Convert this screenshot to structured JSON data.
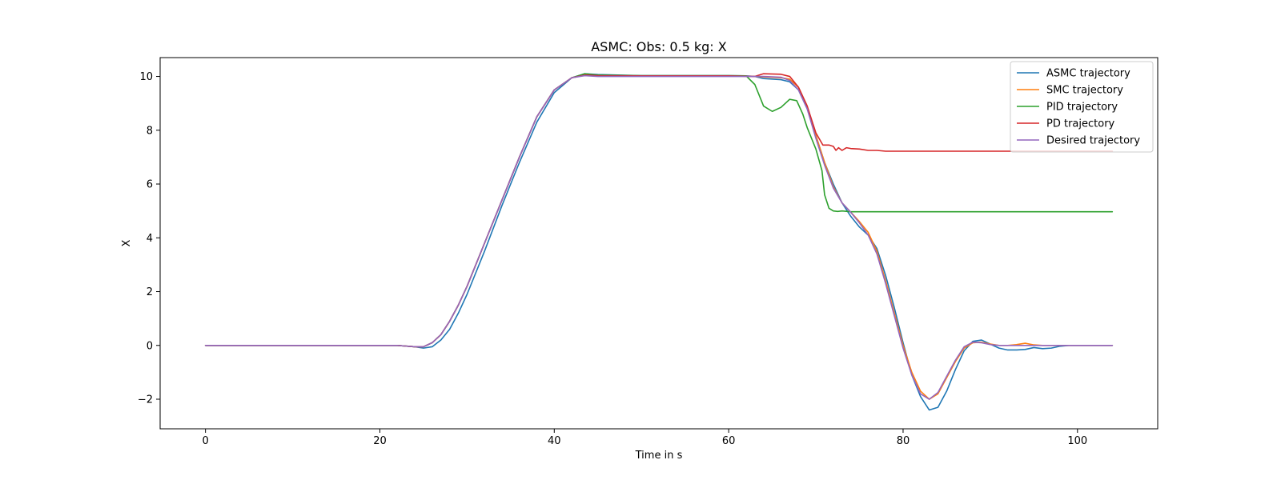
{
  "chart_data": {
    "type": "line",
    "title": "ASMC: Obs: 0.5 kg: X",
    "xlabel": "Time in s",
    "ylabel": "X",
    "xlim": [
      -5.2,
      109.2
    ],
    "ylim": [
      -3.1,
      10.7
    ],
    "xticks": [
      0,
      20,
      40,
      60,
      80,
      100
    ],
    "yticks": [
      -2,
      0,
      2,
      4,
      6,
      8,
      10
    ],
    "xtick_labels": [
      "0",
      "20",
      "40",
      "60",
      "80",
      "100"
    ],
    "ytick_labels": [
      "−2",
      "0",
      "2",
      "4",
      "6",
      "8",
      "10"
    ],
    "grid": false,
    "legend_position": "top-right",
    "series": [
      {
        "name": "ASMC trajectory",
        "color": "#1f77b4",
        "points": [
          [
            0,
            0
          ],
          [
            22,
            0
          ],
          [
            24,
            -0.05
          ],
          [
            25,
            -0.1
          ],
          [
            26,
            -0.05
          ],
          [
            27,
            0.2
          ],
          [
            28,
            0.6
          ],
          [
            29,
            1.2
          ],
          [
            30,
            1.9
          ],
          [
            32,
            3.5
          ],
          [
            34,
            5.2
          ],
          [
            36,
            6.8
          ],
          [
            38,
            8.3
          ],
          [
            40,
            9.4
          ],
          [
            42,
            9.95
          ],
          [
            43.5,
            10.1
          ],
          [
            45,
            10.07
          ],
          [
            50,
            10.03
          ],
          [
            55,
            10.03
          ],
          [
            60,
            10.03
          ],
          [
            62,
            10.02
          ],
          [
            63,
            10.0
          ],
          [
            64,
            9.92
          ],
          [
            66,
            9.88
          ],
          [
            67,
            9.8
          ],
          [
            68,
            9.5
          ],
          [
            69,
            8.8
          ],
          [
            70,
            7.8
          ],
          [
            71,
            6.8
          ],
          [
            72,
            6.0
          ],
          [
            73,
            5.3
          ],
          [
            74,
            4.8
          ],
          [
            75,
            4.4
          ],
          [
            76,
            4.1
          ],
          [
            77,
            3.6
          ],
          [
            78,
            2.6
          ],
          [
            79,
            1.4
          ],
          [
            80,
            0.1
          ],
          [
            81,
            -1.1
          ],
          [
            82,
            -1.9
          ],
          [
            83,
            -2.4
          ],
          [
            84,
            -2.3
          ],
          [
            85,
            -1.7
          ],
          [
            86,
            -0.9
          ],
          [
            87,
            -0.2
          ],
          [
            88,
            0.15
          ],
          [
            89,
            0.2
          ],
          [
            90,
            0.05
          ],
          [
            91,
            -0.1
          ],
          [
            92,
            -0.17
          ],
          [
            93,
            -0.17
          ],
          [
            94,
            -0.15
          ],
          [
            95,
            -0.08
          ],
          [
            96,
            -0.12
          ],
          [
            97,
            -0.1
          ],
          [
            98,
            -0.03
          ],
          [
            99,
            0
          ],
          [
            104,
            0
          ]
        ]
      },
      {
        "name": "SMC trajectory",
        "color": "#ff7f0e",
        "points": [
          [
            0,
            0
          ],
          [
            22,
            0
          ],
          [
            24,
            -0.05
          ],
          [
            25,
            -0.05
          ],
          [
            26,
            0.1
          ],
          [
            27,
            0.4
          ],
          [
            28,
            0.9
          ],
          [
            29,
            1.5
          ],
          [
            30,
            2.2
          ],
          [
            32,
            3.8
          ],
          [
            34,
            5.4
          ],
          [
            36,
            7.0
          ],
          [
            38,
            8.5
          ],
          [
            40,
            9.5
          ],
          [
            42,
            9.95
          ],
          [
            43.5,
            10.05
          ],
          [
            45,
            10.03
          ],
          [
            50,
            10.02
          ],
          [
            60,
            10.02
          ],
          [
            63,
            10.0
          ],
          [
            64,
            9.98
          ],
          [
            66,
            9.95
          ],
          [
            67,
            9.9
          ],
          [
            68,
            9.6
          ],
          [
            69,
            8.9
          ],
          [
            70,
            7.8
          ],
          [
            71,
            6.8
          ],
          [
            72,
            5.9
          ],
          [
            73,
            5.3
          ],
          [
            74,
            4.95
          ],
          [
            75,
            4.6
          ],
          [
            76,
            4.2
          ],
          [
            77,
            3.5
          ],
          [
            78,
            2.4
          ],
          [
            79,
            1.2
          ],
          [
            80,
            0
          ],
          [
            81,
            -1.0
          ],
          [
            82,
            -1.7
          ],
          [
            83,
            -2.0
          ],
          [
            84,
            -1.8
          ],
          [
            85,
            -1.2
          ],
          [
            86,
            -0.6
          ],
          [
            87,
            -0.1
          ],
          [
            88,
            0.1
          ],
          [
            89,
            0.12
          ],
          [
            90,
            0.05
          ],
          [
            91,
            0
          ],
          [
            92,
            0
          ],
          [
            93,
            0.03
          ],
          [
            94,
            0.08
          ],
          [
            95,
            0.02
          ],
          [
            96,
            0
          ],
          [
            104,
            0
          ]
        ]
      },
      {
        "name": "PID trajectory",
        "color": "#2ca02c",
        "points": [
          [
            0,
            0
          ],
          [
            22,
            0
          ],
          [
            24,
            -0.05
          ],
          [
            25,
            -0.05
          ],
          [
            26,
            0.1
          ],
          [
            27,
            0.4
          ],
          [
            28,
            0.9
          ],
          [
            29,
            1.5
          ],
          [
            30,
            2.2
          ],
          [
            32,
            3.8
          ],
          [
            34,
            5.4
          ],
          [
            36,
            7.0
          ],
          [
            38,
            8.5
          ],
          [
            40,
            9.5
          ],
          [
            42,
            9.95
          ],
          [
            43.5,
            10.1
          ],
          [
            45,
            10.05
          ],
          [
            50,
            10.03
          ],
          [
            60,
            10.03
          ],
          [
            62,
            10.02
          ],
          [
            63,
            9.7
          ],
          [
            64,
            8.9
          ],
          [
            65,
            8.7
          ],
          [
            66,
            8.85
          ],
          [
            67,
            9.15
          ],
          [
            67.8,
            9.1
          ],
          [
            68.5,
            8.6
          ],
          [
            69,
            8.1
          ],
          [
            70,
            7.3
          ],
          [
            70.7,
            6.5
          ],
          [
            71,
            5.6
          ],
          [
            71.5,
            5.1
          ],
          [
            72,
            5.0
          ],
          [
            72.5,
            4.98
          ],
          [
            73,
            5.0
          ],
          [
            74,
            4.97
          ],
          [
            80,
            4.97
          ],
          [
            90,
            4.97
          ],
          [
            100,
            4.97
          ],
          [
            104,
            4.97
          ]
        ]
      },
      {
        "name": "PD trajectory",
        "color": "#d62728",
        "points": [
          [
            0,
            0
          ],
          [
            22,
            0
          ],
          [
            24,
            -0.05
          ],
          [
            25,
            -0.05
          ],
          [
            26,
            0.1
          ],
          [
            27,
            0.4
          ],
          [
            28,
            0.9
          ],
          [
            29,
            1.5
          ],
          [
            30,
            2.2
          ],
          [
            32,
            3.8
          ],
          [
            34,
            5.4
          ],
          [
            36,
            7.0
          ],
          [
            38,
            8.5
          ],
          [
            40,
            9.5
          ],
          [
            42,
            9.95
          ],
          [
            43.5,
            10.05
          ],
          [
            45,
            10.03
          ],
          [
            50,
            10.02
          ],
          [
            60,
            10.02
          ],
          [
            63,
            10.0
          ],
          [
            64,
            10.1
          ],
          [
            66,
            10.08
          ],
          [
            67,
            10.0
          ],
          [
            68,
            9.6
          ],
          [
            69,
            8.9
          ],
          [
            70,
            7.9
          ],
          [
            70.8,
            7.45
          ],
          [
            71.5,
            7.45
          ],
          [
            72,
            7.4
          ],
          [
            72.3,
            7.25
          ],
          [
            72.6,
            7.35
          ],
          [
            73,
            7.25
          ],
          [
            73.5,
            7.35
          ],
          [
            74,
            7.32
          ],
          [
            75,
            7.3
          ],
          [
            76,
            7.25
          ],
          [
            77,
            7.25
          ],
          [
            78,
            7.22
          ],
          [
            85,
            7.22
          ],
          [
            90,
            7.22
          ],
          [
            95,
            7.22
          ],
          [
            104,
            7.22
          ]
        ]
      },
      {
        "name": "Desired trajectory",
        "color": "#9467bd",
        "points": [
          [
            0,
            0
          ],
          [
            22,
            0
          ],
          [
            24,
            -0.05
          ],
          [
            25,
            -0.05
          ],
          [
            26,
            0.1
          ],
          [
            27,
            0.4
          ],
          [
            28,
            0.9
          ],
          [
            29,
            1.5
          ],
          [
            30,
            2.2
          ],
          [
            32,
            3.8
          ],
          [
            34,
            5.4
          ],
          [
            36,
            7.0
          ],
          [
            38,
            8.5
          ],
          [
            40,
            9.5
          ],
          [
            42,
            9.95
          ],
          [
            43.5,
            10.03
          ],
          [
            45,
            10.0
          ],
          [
            50,
            10.0
          ],
          [
            60,
            10.0
          ],
          [
            63,
            10.0
          ],
          [
            64,
            10.0
          ],
          [
            66,
            9.97
          ],
          [
            67,
            9.85
          ],
          [
            68,
            9.5
          ],
          [
            69,
            8.8
          ],
          [
            70,
            7.7
          ],
          [
            71,
            6.7
          ],
          [
            72,
            5.85
          ],
          [
            73,
            5.3
          ],
          [
            74,
            4.95
          ],
          [
            75,
            4.55
          ],
          [
            76,
            4.1
          ],
          [
            77,
            3.4
          ],
          [
            78,
            2.3
          ],
          [
            79,
            1.1
          ],
          [
            80,
            -0.1
          ],
          [
            81,
            -1.1
          ],
          [
            82,
            -1.8
          ],
          [
            83,
            -2.0
          ],
          [
            84,
            -1.75
          ],
          [
            85,
            -1.15
          ],
          [
            86,
            -0.55
          ],
          [
            87,
            -0.05
          ],
          [
            88,
            0.12
          ],
          [
            89,
            0.1
          ],
          [
            90,
            0.03
          ],
          [
            91,
            0
          ],
          [
            104,
            0
          ]
        ]
      }
    ]
  }
}
